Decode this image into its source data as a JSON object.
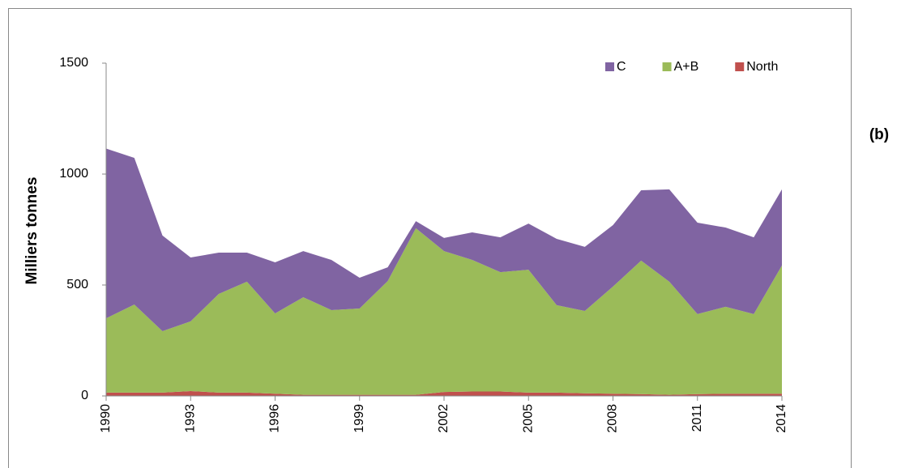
{
  "chart_data": {
    "type": "stacked_area",
    "annotation": "(b)",
    "ylabel": "Milliers  tonnes",
    "x": [
      1990,
      1991,
      1992,
      1993,
      1994,
      1995,
      1996,
      1997,
      1998,
      1999,
      2000,
      2001,
      2002,
      2003,
      2004,
      2005,
      2006,
      2007,
      2008,
      2009,
      2010,
      2011,
      2012,
      2013,
      2014
    ],
    "xlim": [
      1990,
      2014
    ],
    "xticks": [
      1990,
      1993,
      1996,
      1999,
      2002,
      2005,
      2008,
      2011,
      2014
    ],
    "ylim": [
      0,
      1500
    ],
    "yticks": [
      0,
      500,
      1000,
      1500
    ],
    "legend": "top-right",
    "series": [
      {
        "name": "North",
        "color": "#c0504d",
        "values": [
          15,
          15,
          15,
          22,
          15,
          15,
          10,
          5,
          5,
          5,
          5,
          5,
          18,
          20,
          20,
          15,
          15,
          12,
          10,
          8,
          5,
          8,
          10,
          10,
          10
        ]
      },
      {
        "name": "A+B",
        "color": "#9bbb59",
        "values": [
          335,
          397,
          277,
          314,
          445,
          500,
          362,
          440,
          382,
          389,
          513,
          751,
          635,
          593,
          538,
          554,
          394,
          371,
          483,
          602,
          510,
          361,
          392,
          359,
          578
        ]
      },
      {
        "name": "C",
        "color": "#8064a2",
        "values": [
          765,
          661,
          431,
          288,
          186,
          131,
          230,
          208,
          226,
          139,
          62,
          32,
          59,
          124,
          157,
          208,
          299,
          289,
          277,
          317,
          416,
          412,
          357,
          346,
          343
        ]
      }
    ]
  }
}
